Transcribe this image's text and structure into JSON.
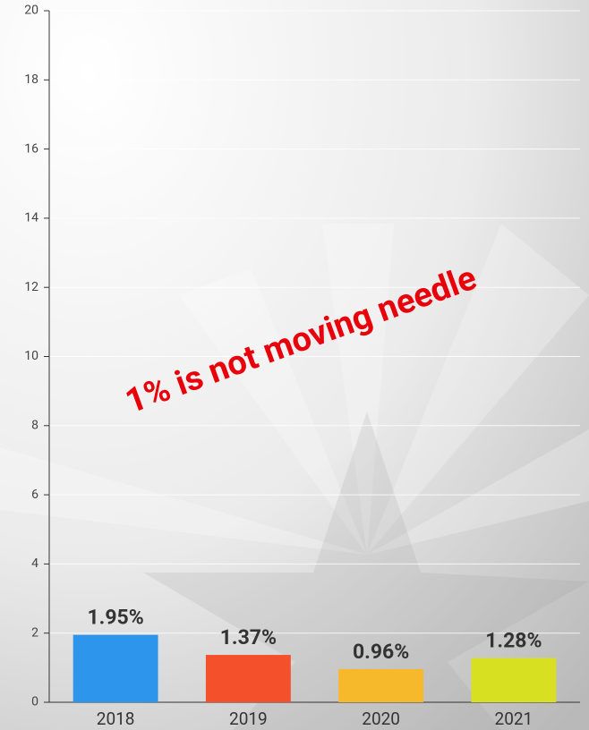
{
  "chart_data": {
    "type": "bar",
    "categories": [
      "2018",
      "2019",
      "2020",
      "2021"
    ],
    "values": [
      1.95,
      1.37,
      0.96,
      1.28
    ],
    "value_labels": [
      "1.95%",
      "1.37%",
      "0.96%",
      "1.28%"
    ],
    "colors": [
      "#2e95ec",
      "#f4502c",
      "#f6b92b",
      "#d8e022"
    ],
    "ylim": [
      0,
      20
    ],
    "yticks": [
      0,
      2,
      4,
      6,
      8,
      10,
      12,
      14,
      16,
      18,
      20
    ],
    "grid": true,
    "annotation": "1% is not moving needle"
  }
}
